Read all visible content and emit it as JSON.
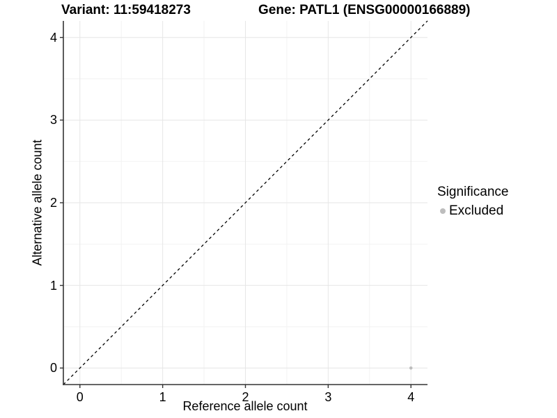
{
  "titles": {
    "variant": "Variant: 11:59418273",
    "gene": "Gene: PATL1 (ENSG00000166889)"
  },
  "axes": {
    "x": {
      "label": "Reference allele count"
    },
    "y": {
      "label": "Alternative allele count"
    }
  },
  "legend": {
    "title": "Significance",
    "items": [
      {
        "label": "Excluded",
        "color": "#bdbdbd"
      }
    ]
  },
  "colors": {
    "background": "#ffffff",
    "grid_major": "#e6e6e6",
    "grid_minor": "#f2f2f2",
    "axis_line": "#333333",
    "tick_mark": "#333333",
    "diagonal_line": "#000000",
    "point": "#bdbdbd",
    "text": "#000000"
  },
  "chart_data": {
    "type": "scatter",
    "title_left": "Variant: 11:59418273",
    "title_right": "Gene: PATL1 (ENSG00000166889)",
    "xlabel": "Reference allele count",
    "ylabel": "Alternative allele count",
    "xlim": [
      -0.2,
      4.2
    ],
    "ylim": [
      -0.2,
      4.2
    ],
    "x_ticks": [
      0,
      1,
      2,
      3,
      4
    ],
    "y_ticks": [
      0,
      1,
      2,
      3,
      4
    ],
    "x_minor_ticks": [
      0.5,
      1.5,
      2.5,
      3.5
    ],
    "y_minor_ticks": [
      0.5,
      1.5,
      2.5,
      3.5
    ],
    "grid": true,
    "reference_line": {
      "type": "identity",
      "style": "dashed",
      "color": "#000000"
    },
    "series": [
      {
        "name": "Excluded",
        "color": "#bdbdbd",
        "points": [
          {
            "x": 4,
            "y": 0
          }
        ]
      }
    ],
    "legend_position": "right",
    "legend_title": "Significance"
  }
}
